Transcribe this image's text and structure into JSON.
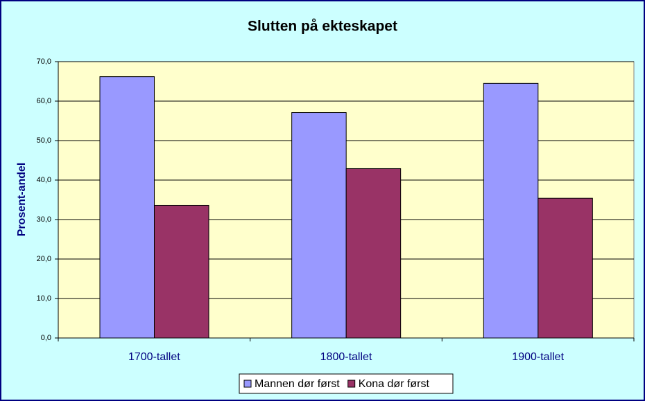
{
  "chart_data": {
    "type": "bar",
    "title": "Slutten på ekteskapet",
    "y_label": "Prosent-andel",
    "categories": [
      "1700-tallet",
      "1800-tallet",
      "1900-tallet"
    ],
    "series": [
      {
        "name": "Mannen dør først",
        "color": "#9999ff",
        "values": [
          66.2,
          57.1,
          64.5
        ]
      },
      {
        "name": "Kona dør først",
        "color": "#993366",
        "values": [
          33.6,
          42.9,
          35.4
        ]
      }
    ],
    "ylim": [
      0,
      70
    ],
    "yticks": [
      {
        "value": 0,
        "label": "0,0"
      },
      {
        "value": 10,
        "label": "10,0"
      },
      {
        "value": 20,
        "label": "20,0"
      },
      {
        "value": 30,
        "label": "30,0"
      },
      {
        "value": 40,
        "label": "40,0"
      },
      {
        "value": 50,
        "label": "50,0"
      },
      {
        "value": 60,
        "label": "60,0"
      },
      {
        "value": 70,
        "label": "70,0"
      }
    ],
    "grid": true
  }
}
